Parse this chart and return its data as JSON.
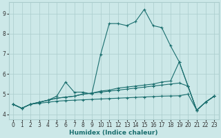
{
  "xlabel": "Humidex (Indice chaleur)",
  "bg_color": "#cce8e8",
  "grid_color": "#aacccc",
  "line_color": "#1a6e6e",
  "xlim": [
    -0.5,
    23.5
  ],
  "ylim": [
    3.75,
    9.55
  ],
  "yticks": [
    4,
    5,
    6,
    7,
    8,
    9
  ],
  "xticks": [
    0,
    1,
    2,
    3,
    4,
    5,
    6,
    7,
    8,
    9,
    10,
    11,
    12,
    13,
    14,
    15,
    16,
    17,
    18,
    19,
    20,
    21,
    22,
    23
  ],
  "lines": [
    {
      "x": [
        0,
        1,
        2,
        3,
        4,
        5,
        6,
        7,
        8,
        9,
        10,
        11,
        12,
        13,
        14,
        15,
        16,
        17,
        18,
        19,
        20,
        21,
        22,
        23
      ],
      "y": [
        4.5,
        4.3,
        4.5,
        4.6,
        4.7,
        4.9,
        5.6,
        5.1,
        5.1,
        5.0,
        6.95,
        8.5,
        8.5,
        8.4,
        8.6,
        9.2,
        8.4,
        8.3,
        7.4,
        6.6,
        5.4,
        4.2,
        4.6,
        4.9
      ]
    },
    {
      "x": [
        0,
        1,
        2,
        3,
        4,
        5,
        6,
        7,
        8,
        9,
        10,
        11,
        12,
        13,
        14,
        15,
        16,
        17,
        18,
        19,
        20,
        21,
        22,
        23
      ],
      "y": [
        4.5,
        4.3,
        4.5,
        4.6,
        4.7,
        4.8,
        4.85,
        4.9,
        5.0,
        5.05,
        5.15,
        5.2,
        5.3,
        5.35,
        5.4,
        5.45,
        5.5,
        5.6,
        5.65,
        6.6,
        5.4,
        4.2,
        4.6,
        4.9
      ]
    },
    {
      "x": [
        0,
        1,
        2,
        3,
        4,
        5,
        6,
        7,
        8,
        9,
        10,
        11,
        12,
        13,
        14,
        15,
        16,
        17,
        18,
        19,
        20,
        21,
        22,
        23
      ],
      "y": [
        4.5,
        4.3,
        4.5,
        4.6,
        4.7,
        4.8,
        4.85,
        4.9,
        5.0,
        5.05,
        5.1,
        5.15,
        5.2,
        5.25,
        5.3,
        5.35,
        5.4,
        5.45,
        5.5,
        5.55,
        5.4,
        4.2,
        4.6,
        4.9
      ]
    },
    {
      "x": [
        0,
        1,
        2,
        3,
        4,
        5,
        6,
        7,
        8,
        9,
        10,
        11,
        12,
        13,
        14,
        15,
        16,
        17,
        18,
        19,
        20,
        21,
        22,
        23
      ],
      "y": [
        4.5,
        4.3,
        4.5,
        4.55,
        4.6,
        4.65,
        4.68,
        4.7,
        4.72,
        4.74,
        4.76,
        4.78,
        4.8,
        4.82,
        4.84,
        4.86,
        4.88,
        4.9,
        4.91,
        4.92,
        5.0,
        4.2,
        4.6,
        4.9
      ]
    }
  ]
}
